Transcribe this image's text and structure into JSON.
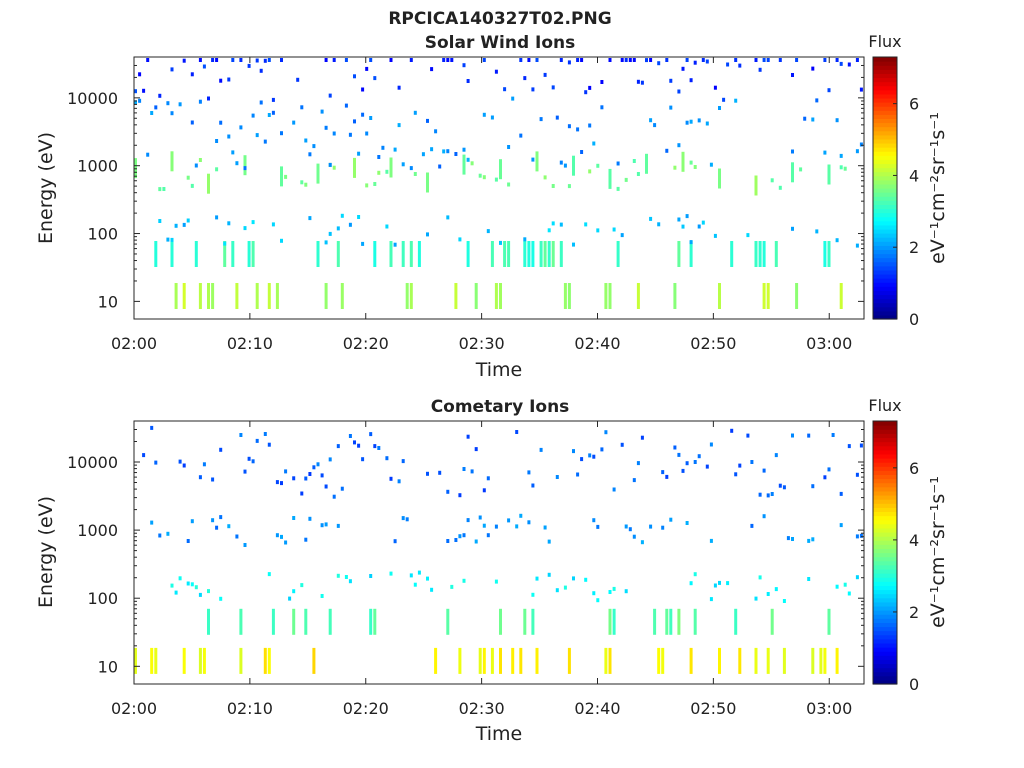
{
  "figure_title": "RPCICA140327T02.PNG",
  "chart_data": [
    {
      "type": "heatmap",
      "title": "Solar Wind Ions",
      "xlabel": "Time",
      "ylabel": "Energy (eV)",
      "x_ticks": [
        "02:00",
        "02:10",
        "02:20",
        "02:30",
        "02:40",
        "02:50",
        "03:00"
      ],
      "x_range_min": [
        0,
        63
      ],
      "y_scale": "log",
      "y_range": [
        5.5,
        40000
      ],
      "y_ticks": [
        10,
        100,
        1000,
        10000
      ],
      "y_tick_labels": [
        "10",
        "100",
        "1000",
        "10000"
      ],
      "colorbar": {
        "title": "Flux",
        "label": "eV⁻¹cm⁻²sr⁻¹s⁻¹",
        "range": [
          0,
          7.3
        ],
        "ticks": [
          0,
          2,
          4,
          6
        ],
        "colormap": "jet"
      },
      "energy_band_values": [
        {
          "energy_eV": 750,
          "flux": 3.6
        },
        {
          "energy_eV": 50,
          "flux": 3.2
        },
        {
          "energy_eV": 12,
          "flux": 4.0
        },
        {
          "energy_eV": 110,
          "flux": 2.3
        },
        {
          "energy_eV": 3000,
          "flux": 1.9
        },
        {
          "energy_eV": 30000,
          "flux": 1.2
        }
      ]
    },
    {
      "type": "heatmap",
      "title": "Cometary Ions",
      "xlabel": "Time",
      "ylabel": "Energy (eV)",
      "x_ticks": [
        "02:00",
        "02:10",
        "02:20",
        "02:30",
        "02:40",
        "02:50",
        "03:00"
      ],
      "x_range_min": [
        0,
        63
      ],
      "y_scale": "log",
      "y_range": [
        5.5,
        40000
      ],
      "y_ticks": [
        10,
        100,
        1000,
        10000
      ],
      "y_tick_labels": [
        "10",
        "100",
        "1000",
        "10000"
      ],
      "colorbar": {
        "title": "Flux",
        "label": "eV⁻¹cm⁻²sr⁻¹s⁻¹",
        "range": [
          0,
          7.3
        ],
        "ticks": [
          0,
          2,
          4,
          6
        ],
        "colormap": "jet"
      },
      "energy_band_values": [
        {
          "energy_eV": 12,
          "flux": 4.6
        },
        {
          "energy_eV": 45,
          "flux": 3.4
        },
        {
          "energy_eV": 150,
          "flux": 2.7
        },
        {
          "energy_eV": 1000,
          "flux": 1.9
        },
        {
          "energy_eV": 10000,
          "flux": 1.6
        }
      ]
    }
  ]
}
